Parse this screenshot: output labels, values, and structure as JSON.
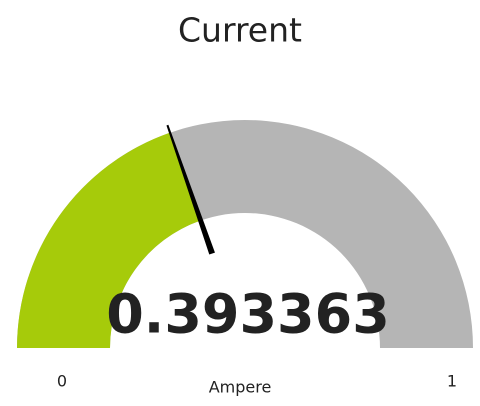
{
  "chart_data": {
    "type": "gauge",
    "title": "Current",
    "value": 0.393363,
    "unit": "Ampere",
    "ylim": [
      0,
      1
    ],
    "color": "#a6cb0a",
    "track_color": "#b5b5b5",
    "needle_color": "#000000"
  }
}
